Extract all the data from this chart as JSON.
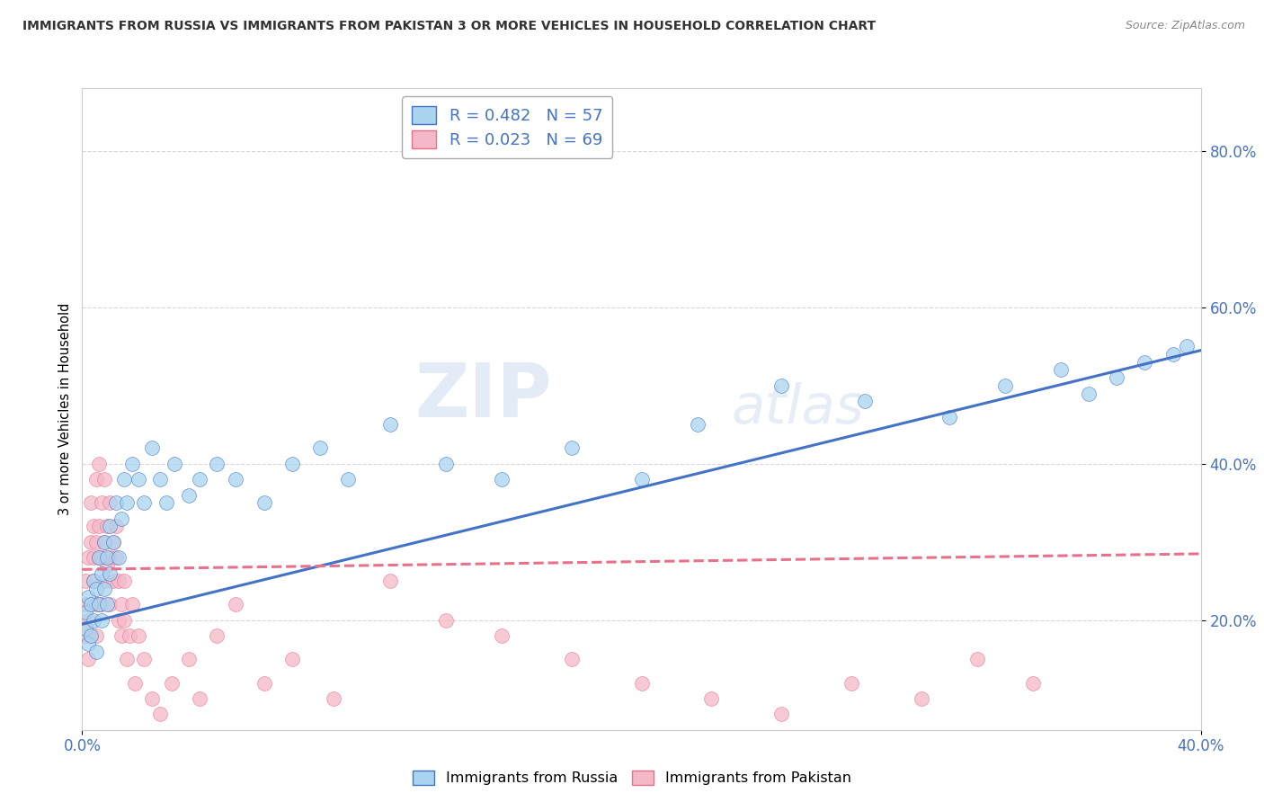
{
  "title": "IMMIGRANTS FROM RUSSIA VS IMMIGRANTS FROM PAKISTAN 3 OR MORE VEHICLES IN HOUSEHOLD CORRELATION CHART",
  "source": "Source: ZipAtlas.com",
  "ylabel": "3 or more Vehicles in Household",
  "russia_R": 0.482,
  "russia_N": 57,
  "pakistan_R": 0.023,
  "pakistan_N": 69,
  "russia_color": "#a8d4f0",
  "pakistan_color": "#f5b8c8",
  "russia_line_color": "#4472c4",
  "pakistan_line_color": "#e8708a",
  "xlim": [
    0.0,
    0.4
  ],
  "ylim": [
    0.06,
    0.88
  ],
  "xticks": [
    0.0,
    0.4
  ],
  "yticks": [
    0.2,
    0.4,
    0.6,
    0.8
  ],
  "russia_x": [
    0.001,
    0.001,
    0.002,
    0.002,
    0.003,
    0.003,
    0.004,
    0.004,
    0.005,
    0.005,
    0.006,
    0.006,
    0.007,
    0.007,
    0.008,
    0.008,
    0.009,
    0.009,
    0.01,
    0.01,
    0.011,
    0.012,
    0.013,
    0.014,
    0.015,
    0.016,
    0.018,
    0.02,
    0.022,
    0.025,
    0.028,
    0.03,
    0.033,
    0.038,
    0.042,
    0.048,
    0.055,
    0.065,
    0.075,
    0.085,
    0.095,
    0.11,
    0.13,
    0.15,
    0.175,
    0.2,
    0.22,
    0.25,
    0.28,
    0.31,
    0.33,
    0.35,
    0.36,
    0.37,
    0.38,
    0.39,
    0.395
  ],
  "russia_y": [
    0.21,
    0.19,
    0.23,
    0.17,
    0.22,
    0.18,
    0.25,
    0.2,
    0.24,
    0.16,
    0.28,
    0.22,
    0.26,
    0.2,
    0.3,
    0.24,
    0.28,
    0.22,
    0.32,
    0.26,
    0.3,
    0.35,
    0.28,
    0.33,
    0.38,
    0.35,
    0.4,
    0.38,
    0.35,
    0.42,
    0.38,
    0.35,
    0.4,
    0.36,
    0.38,
    0.4,
    0.38,
    0.35,
    0.4,
    0.42,
    0.38,
    0.45,
    0.4,
    0.38,
    0.42,
    0.38,
    0.45,
    0.5,
    0.48,
    0.46,
    0.5,
    0.52,
    0.49,
    0.51,
    0.53,
    0.54,
    0.55
  ],
  "pakistan_x": [
    0.001,
    0.001,
    0.001,
    0.002,
    0.002,
    0.002,
    0.003,
    0.003,
    0.003,
    0.003,
    0.004,
    0.004,
    0.004,
    0.005,
    0.005,
    0.005,
    0.005,
    0.006,
    0.006,
    0.006,
    0.006,
    0.007,
    0.007,
    0.007,
    0.008,
    0.008,
    0.008,
    0.009,
    0.009,
    0.01,
    0.01,
    0.01,
    0.011,
    0.011,
    0.012,
    0.012,
    0.013,
    0.013,
    0.014,
    0.014,
    0.015,
    0.015,
    0.016,
    0.017,
    0.018,
    0.019,
    0.02,
    0.022,
    0.025,
    0.028,
    0.032,
    0.038,
    0.042,
    0.048,
    0.055,
    0.065,
    0.075,
    0.09,
    0.11,
    0.13,
    0.15,
    0.175,
    0.2,
    0.225,
    0.25,
    0.275,
    0.3,
    0.32,
    0.34
  ],
  "pakistan_y": [
    0.22,
    0.18,
    0.25,
    0.2,
    0.28,
    0.15,
    0.3,
    0.22,
    0.35,
    0.18,
    0.32,
    0.25,
    0.28,
    0.38,
    0.3,
    0.22,
    0.18,
    0.4,
    0.32,
    0.28,
    0.22,
    0.35,
    0.28,
    0.22,
    0.38,
    0.3,
    0.25,
    0.32,
    0.27,
    0.35,
    0.28,
    0.22,
    0.3,
    0.25,
    0.32,
    0.28,
    0.25,
    0.2,
    0.22,
    0.18,
    0.25,
    0.2,
    0.15,
    0.18,
    0.22,
    0.12,
    0.18,
    0.15,
    0.1,
    0.08,
    0.12,
    0.15,
    0.1,
    0.18,
    0.22,
    0.12,
    0.15,
    0.1,
    0.25,
    0.2,
    0.18,
    0.15,
    0.12,
    0.1,
    0.08,
    0.12,
    0.1,
    0.15,
    0.12
  ],
  "russia_trend_x": [
    0.0,
    0.4
  ],
  "russia_trend_y": [
    0.195,
    0.545
  ],
  "pakistan_trend_x": [
    0.0,
    0.4
  ],
  "pakistan_trend_y": [
    0.265,
    0.285
  ]
}
